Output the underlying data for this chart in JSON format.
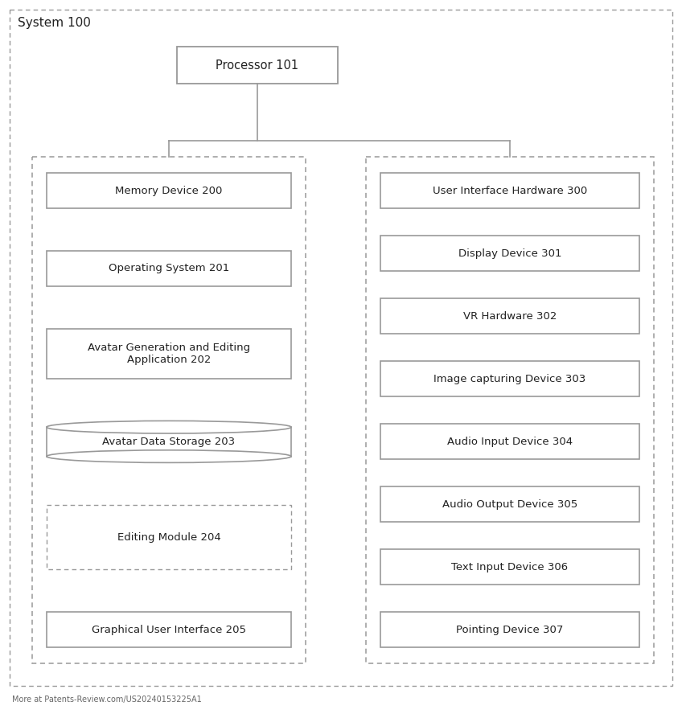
{
  "title": "System 100",
  "processor_label": "Processor 101",
  "left_boxes": [
    "Memory Device 200",
    "Operating System 201",
    "Avatar Generation and Editing\nApplication 202",
    "Avatar Data Storage 203",
    "Editing Module 204",
    "Graphical User Interface 205"
  ],
  "right_boxes": [
    "User Interface Hardware 300",
    "Display Device 301",
    "VR Hardware 302",
    "Image capturing Device 303",
    "Audio Input Device 304",
    "Audio Output Device 305",
    "Text Input Device 306",
    "Pointing Device 307"
  ],
  "bg_color": "#ffffff",
  "box_face_color": "#ffffff",
  "box_edge_color": "#999999",
  "outer_box_color": "#999999",
  "text_color": "#222222",
  "font_size": 9.5,
  "title_font_size": 11,
  "watermark": "More at Patents-Review.com/US20240153225A1"
}
